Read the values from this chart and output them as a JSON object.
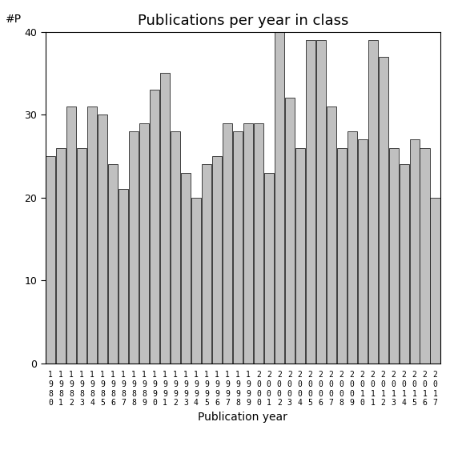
{
  "title": "Publications per year in class",
  "xlabel": "Publication year",
  "ylabel": "#P",
  "years": [
    1980,
    1981,
    1982,
    1983,
    1984,
    1985,
    1986,
    1987,
    1988,
    1989,
    1990,
    1991,
    1992,
    1993,
    1994,
    1995,
    1996,
    1997,
    1998,
    1999,
    2000,
    2001,
    2002,
    2003,
    2004,
    2005,
    2006,
    2007,
    2008,
    2009,
    2010,
    2011,
    2012,
    2013,
    2014,
    2015,
    2016,
    2017
  ],
  "values": [
    25,
    26,
    31,
    26,
    31,
    30,
    24,
    21,
    28,
    29,
    33,
    35,
    28,
    23,
    20,
    24,
    25,
    29,
    28,
    29,
    29,
    23,
    40,
    32,
    26,
    39,
    39,
    31,
    26,
    28,
    27,
    39,
    37,
    26,
    24,
    27,
    26,
    20
  ],
  "bar_color": "#c0c0c0",
  "bar_edge_color": "#000000",
  "bar_edge_width": 0.5,
  "ylim": [
    0,
    40
  ],
  "yticks": [
    0,
    10,
    20,
    30,
    40
  ],
  "bg_color": "#ffffff",
  "title_fontsize": 13,
  "label_fontsize": 10,
  "tick_fontsize": 9,
  "bar_width": 0.93
}
